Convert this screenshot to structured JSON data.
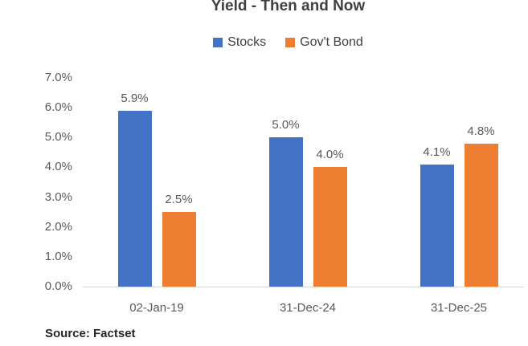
{
  "source": {
    "text": "Source: Factset"
  },
  "colors": {
    "stocks": "#4472C4",
    "govt_bond": "#ED7D31",
    "title_text": "#404040",
    "label_text": "#595959",
    "source_text": "#262626",
    "axis_line": "#d6d6d6",
    "background": "#ffffff"
  },
  "chart_data": {
    "type": "bar",
    "title": "Yield - Then and Now",
    "xlabel": "",
    "ylabel": "",
    "ylim": [
      0,
      7
    ],
    "grid": false,
    "legend_position": "top",
    "categories": [
      "02-Jan-19",
      "31-Dec-24",
      "31-Dec-25"
    ],
    "yticks": [
      "0.0%",
      "1.0%",
      "2.0%",
      "3.0%",
      "4.0%",
      "5.0%",
      "6.0%",
      "7.0%"
    ],
    "series": [
      {
        "name": "Stocks",
        "color": "#4472C4",
        "values": [
          5.9,
          5.0,
          4.1
        ],
        "labels": [
          "5.9%",
          "5.0%",
          "4.1%"
        ]
      },
      {
        "name": "Gov't Bond",
        "color": "#ED7D31",
        "values": [
          2.5,
          4.0,
          4.8
        ],
        "labels": [
          "2.5%",
          "4.0%",
          "4.8%"
        ]
      }
    ]
  }
}
